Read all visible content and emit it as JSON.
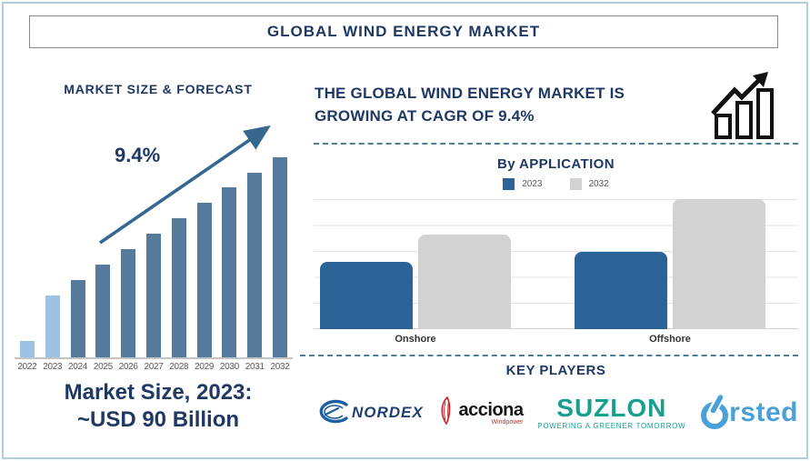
{
  "page": {
    "title": "GLOBAL WIND ENERGY MARKET"
  },
  "left_panel": {
    "title": "MARKET SIZE & FORECAST",
    "growth_annotation": "9.4%",
    "caption_line1": "Market Size, 2023:",
    "caption_line2": "~USD 90 Billion"
  },
  "right_panel": {
    "heading_line1": "THE GLOBAL WIND ENERGY MARKET IS",
    "heading_line2": "GROWING AT CAGR OF 9.4%",
    "trend_icon": "bar-chart-rising-arrow-icon",
    "application_section": {
      "title": "By APPLICATION"
    },
    "key_players": {
      "title": "KEY PLAYERS",
      "players": [
        {
          "name": "NORDEX",
          "color": "#1e3e73",
          "icon": "nordex-swoosh-icon"
        },
        {
          "name": "acciona",
          "subtext": "Windpower",
          "color": "#161616",
          "accent": "#c62828",
          "icon": "acciona-leaf-icon"
        },
        {
          "name": "SUZLON",
          "tagline": "POWERING A GREENER TOMORROW",
          "color": "#17a08f"
        },
        {
          "name": "rsted",
          "display": "Orsted (power-symbol O)",
          "color": "#4aa0d8",
          "icon": "orsted-power-o-icon"
        }
      ]
    }
  },
  "chart_data": [
    {
      "id": "market-forecast",
      "type": "bar",
      "title": "MARKET SIZE & FORECAST",
      "categories": [
        "2022",
        "2023",
        "2024",
        "2025",
        "2026",
        "2027",
        "2028",
        "2029",
        "2030",
        "2031",
        "2032"
      ],
      "values": [
        24,
        90,
        112,
        135,
        157,
        180,
        202,
        225,
        247,
        268,
        291
      ],
      "unit": "USD Billion (estimated; 2023 labeled ~USD 90 Billion)",
      "annotation": "9.4%",
      "highlight_categories": [
        "2022",
        "2023"
      ],
      "bar_color": "#567a9b",
      "highlight_color": "#9cc3e4",
      "arrow_color": "#35678f",
      "xlabel": "",
      "ylabel": "",
      "ylim": [
        0,
        300
      ],
      "grid": false,
      "legend_position": "none"
    },
    {
      "id": "by-application",
      "type": "bar",
      "title": "By APPLICATION",
      "categories": [
        "Onshore",
        "Offshore"
      ],
      "series": [
        {
          "name": "2023",
          "color": "#2b6396",
          "values": [
            52,
            60
          ]
        },
        {
          "name": "2032",
          "color": "#d2d2d2",
          "values": [
            73,
            101
          ]
        }
      ],
      "unit": "relative index (no axis values shown)",
      "ylim": [
        0,
        100
      ],
      "grid": true,
      "legend_position": "top"
    }
  ],
  "colors": {
    "navy_text": "#1f3864",
    "page_border": "#aecde1",
    "title_box_border": "#8a8a8a",
    "dashed_separator": "#4d7f96",
    "gridline": "#e3e3e3",
    "axis_label_gray": "#595959"
  }
}
